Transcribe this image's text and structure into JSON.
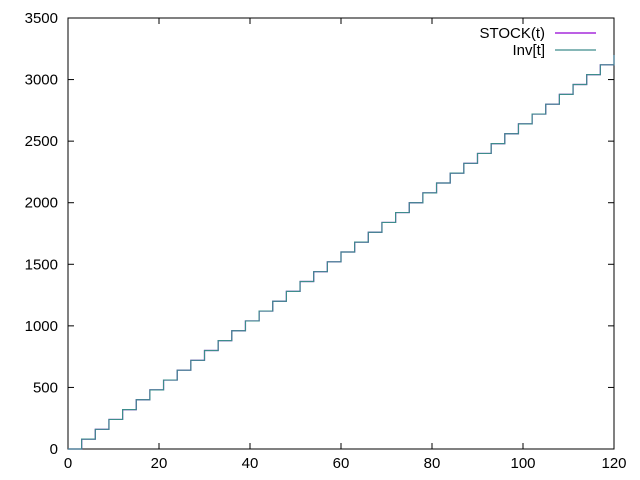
{
  "chart_data": {
    "type": "line",
    "step": true,
    "xlim": [
      0,
      120
    ],
    "ylim": [
      0,
      3500
    ],
    "xticks": [
      0,
      20,
      40,
      60,
      80,
      100,
      120
    ],
    "yticks": [
      0,
      500,
      1000,
      1500,
      2000,
      2500,
      3000,
      3500
    ],
    "grid": false,
    "legend_position": "top-right",
    "series": [
      {
        "name": "STOCK(t)",
        "color": "#9400d3",
        "x": [
          0,
          3,
          6,
          9,
          12,
          15,
          18,
          21,
          24,
          27,
          30,
          33,
          36,
          39,
          42,
          45,
          48,
          51,
          54,
          57,
          60,
          63,
          66,
          69,
          72,
          75,
          78,
          81,
          84,
          87,
          90,
          93,
          96,
          99,
          102,
          105,
          108,
          111,
          114,
          117,
          120
        ],
        "y": [
          0,
          80,
          160,
          240,
          320,
          400,
          480,
          560,
          640,
          720,
          800,
          880,
          960,
          1040,
          1120,
          1200,
          1280,
          1360,
          1440,
          1520,
          1600,
          1680,
          1760,
          1840,
          1920,
          2000,
          2080,
          2160,
          2240,
          2320,
          2400,
          2480,
          2560,
          2640,
          2720,
          2800,
          2880,
          2960,
          3040,
          3120,
          3200
        ]
      },
      {
        "name": "Inv[t]",
        "color": "#3d8c8c",
        "x": [
          0,
          3,
          6,
          9,
          12,
          15,
          18,
          21,
          24,
          27,
          30,
          33,
          36,
          39,
          42,
          45,
          48,
          51,
          54,
          57,
          60,
          63,
          66,
          69,
          72,
          75,
          78,
          81,
          84,
          87,
          90,
          93,
          96,
          99,
          102,
          105,
          108,
          111,
          114,
          117,
          120
        ],
        "y": [
          0,
          80,
          160,
          240,
          320,
          400,
          480,
          560,
          640,
          720,
          800,
          880,
          960,
          1040,
          1120,
          1200,
          1280,
          1360,
          1440,
          1520,
          1600,
          1680,
          1760,
          1840,
          1920,
          2000,
          2080,
          2160,
          2240,
          2320,
          2400,
          2480,
          2560,
          2640,
          2720,
          2800,
          2880,
          2960,
          3040,
          3120,
          3200
        ]
      }
    ]
  }
}
